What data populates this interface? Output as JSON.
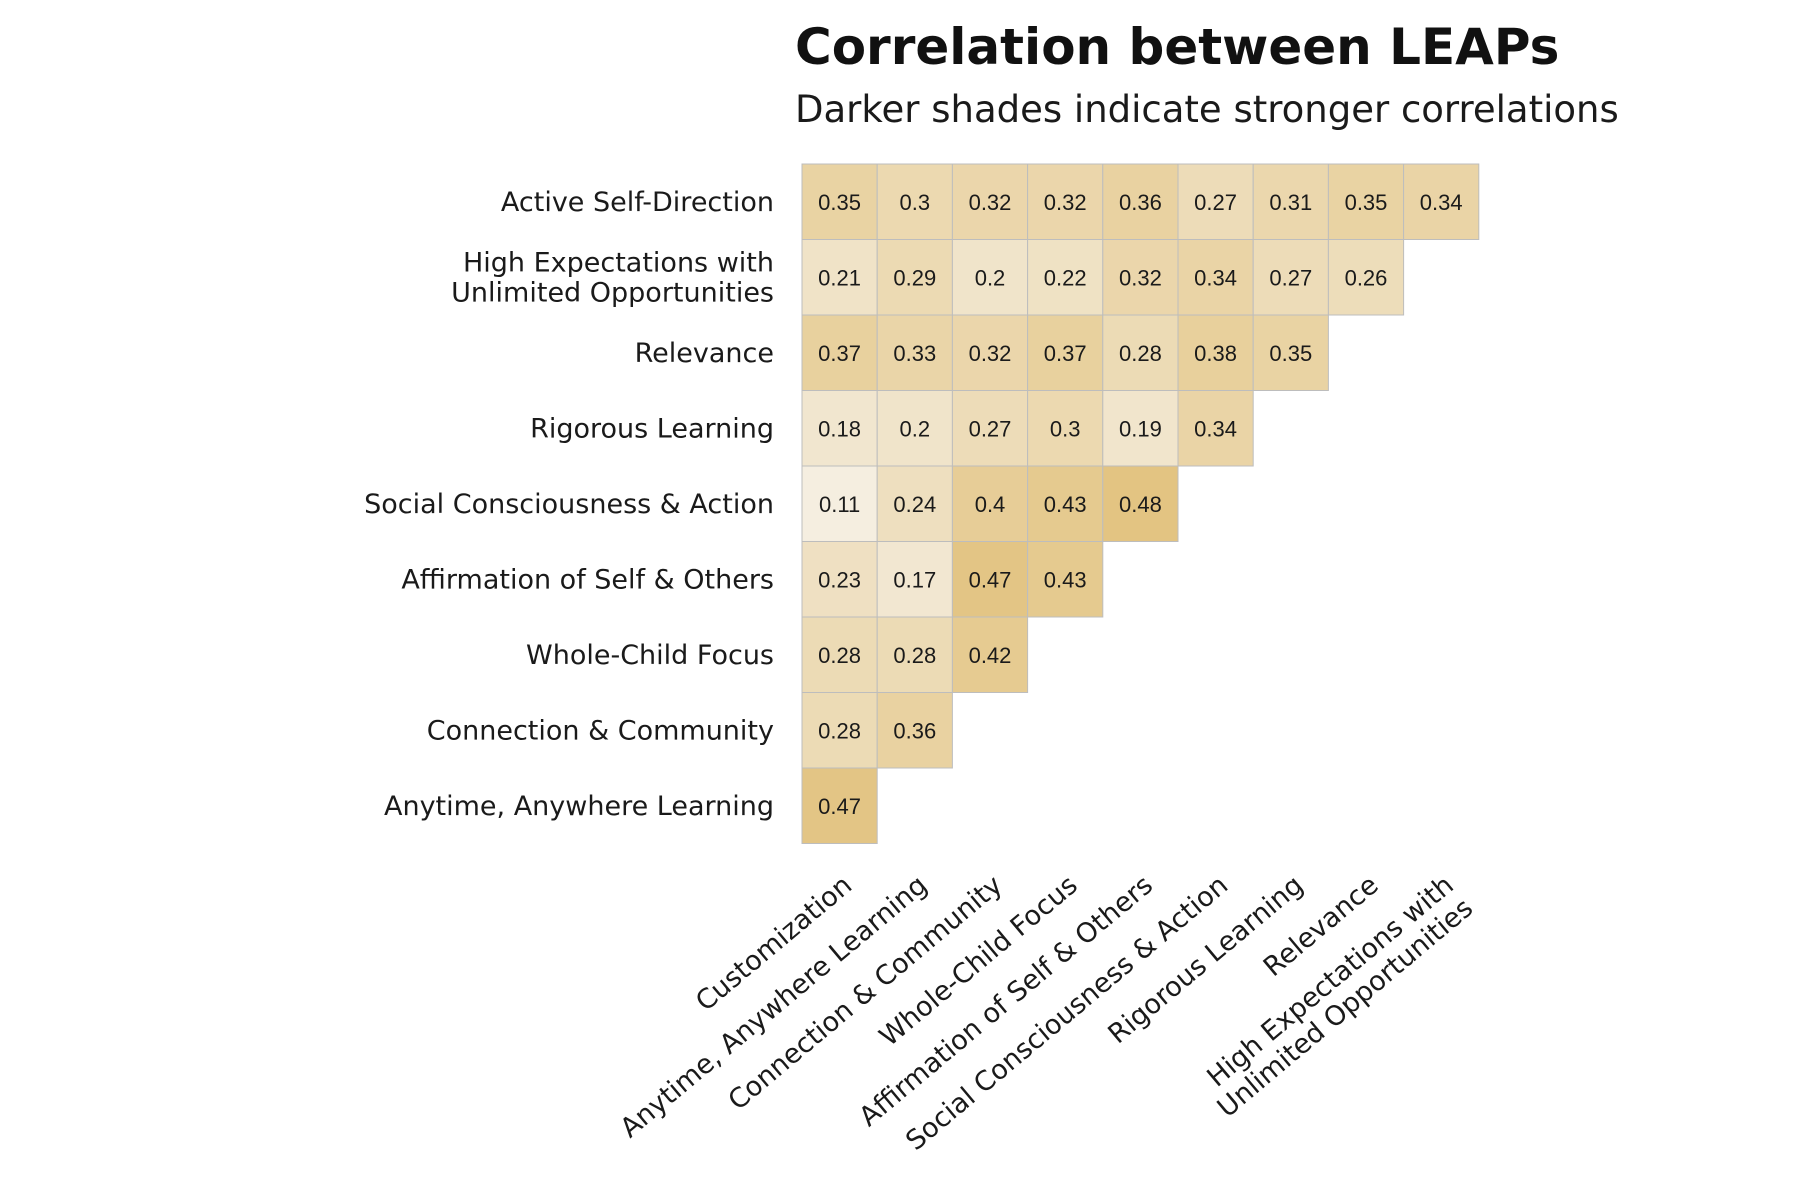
{
  "chart_data": {
    "type": "heatmap",
    "title": "Correlation between LEAPs",
    "subtitle": "Darker shades indicate stronger correlations",
    "rows": [
      "Active Self-Direction",
      "High Expectations with\nUnlimited Opportunities",
      "Relevance",
      "Rigorous Learning",
      "Social Consciousness & Action",
      "Affirmation of Self & Others",
      "Whole-Child Focus",
      "Connection & Community",
      "Anytime, Anywhere Learning"
    ],
    "columns": [
      "Customization",
      "Anytime, Anywhere Learning",
      "Connection & Community",
      "Whole-Child Focus",
      "Affirmation of Self & Others",
      "Social Consciousness & Action",
      "Rigorous Learning",
      "Relevance",
      "High Expectations with\nUnlimited Opportunities"
    ],
    "values": [
      [
        0.35,
        0.3,
        0.32,
        0.32,
        0.36,
        0.27,
        0.31,
        0.35,
        0.34
      ],
      [
        0.21,
        0.29,
        0.2,
        0.22,
        0.32,
        0.34,
        0.27,
        0.26
      ],
      [
        0.37,
        0.33,
        0.32,
        0.37,
        0.28,
        0.38,
        0.35
      ],
      [
        0.18,
        0.2,
        0.27,
        0.3,
        0.19,
        0.34
      ],
      [
        0.11,
        0.24,
        0.4,
        0.43,
        0.48
      ],
      [
        0.23,
        0.17,
        0.47,
        0.43
      ],
      [
        0.28,
        0.28,
        0.42
      ],
      [
        0.28,
        0.36
      ],
      [
        0.47
      ]
    ],
    "color_scale": {
      "low": "#f5efe3",
      "high": "#e2c27d",
      "domain": [
        0.1,
        0.5
      ]
    },
    "cell_border_color": "#bdbdbd",
    "legend": "none",
    "grid": false
  }
}
